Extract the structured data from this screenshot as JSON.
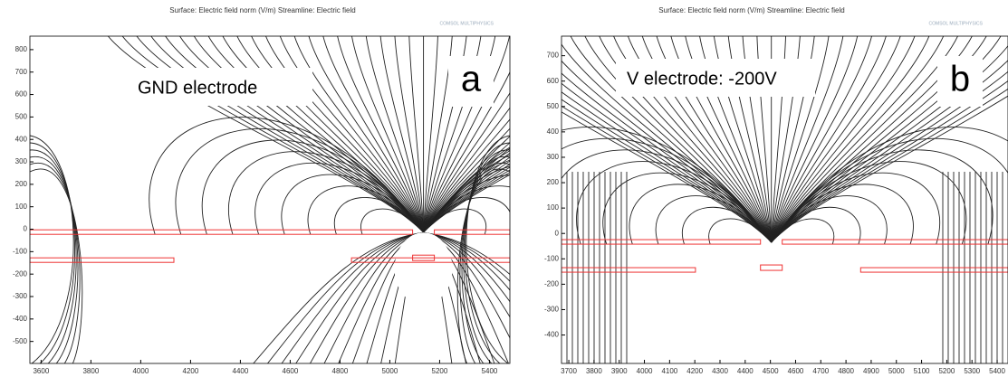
{
  "chart_data": [
    {
      "type": "streamline",
      "title": "Surface: Electric field norm (V/m)  Streamline: Electric field",
      "logo": "COMSOL MULTIPHYSICS",
      "annotation": "GND electrode",
      "panel_label": "a",
      "xlim": [
        3555,
        5482
      ],
      "ylim": [
        -598,
        860
      ],
      "xticks": [
        3600,
        3800,
        4000,
        4200,
        4400,
        4600,
        4800,
        5000,
        5200,
        5400
      ],
      "yticks": [
        800,
        700,
        600,
        500,
        400,
        300,
        200,
        100,
        0,
        -100,
        -200,
        -300,
        -400,
        -500
      ]
    },
    {
      "type": "streamline",
      "title": "Surface: Electric field norm (V/m)  Streamline: Electric field",
      "logo": "COMSOL MULTIPHYSICS",
      "annotation": "V electrode: -200V",
      "panel_label": "b",
      "xlim": [
        3671,
        5443
      ],
      "ylim": [
        -512,
        777
      ],
      "xticks": [
        3700,
        3800,
        3900,
        4000,
        4100,
        4200,
        4300,
        4400,
        4500,
        4600,
        4700,
        4800,
        4900,
        5000,
        5100,
        5200,
        5300,
        5400
      ],
      "yticks": [
        700,
        600,
        500,
        400,
        300,
        200,
        100,
        0,
        -100,
        -200,
        -300,
        -400
      ]
    }
  ]
}
